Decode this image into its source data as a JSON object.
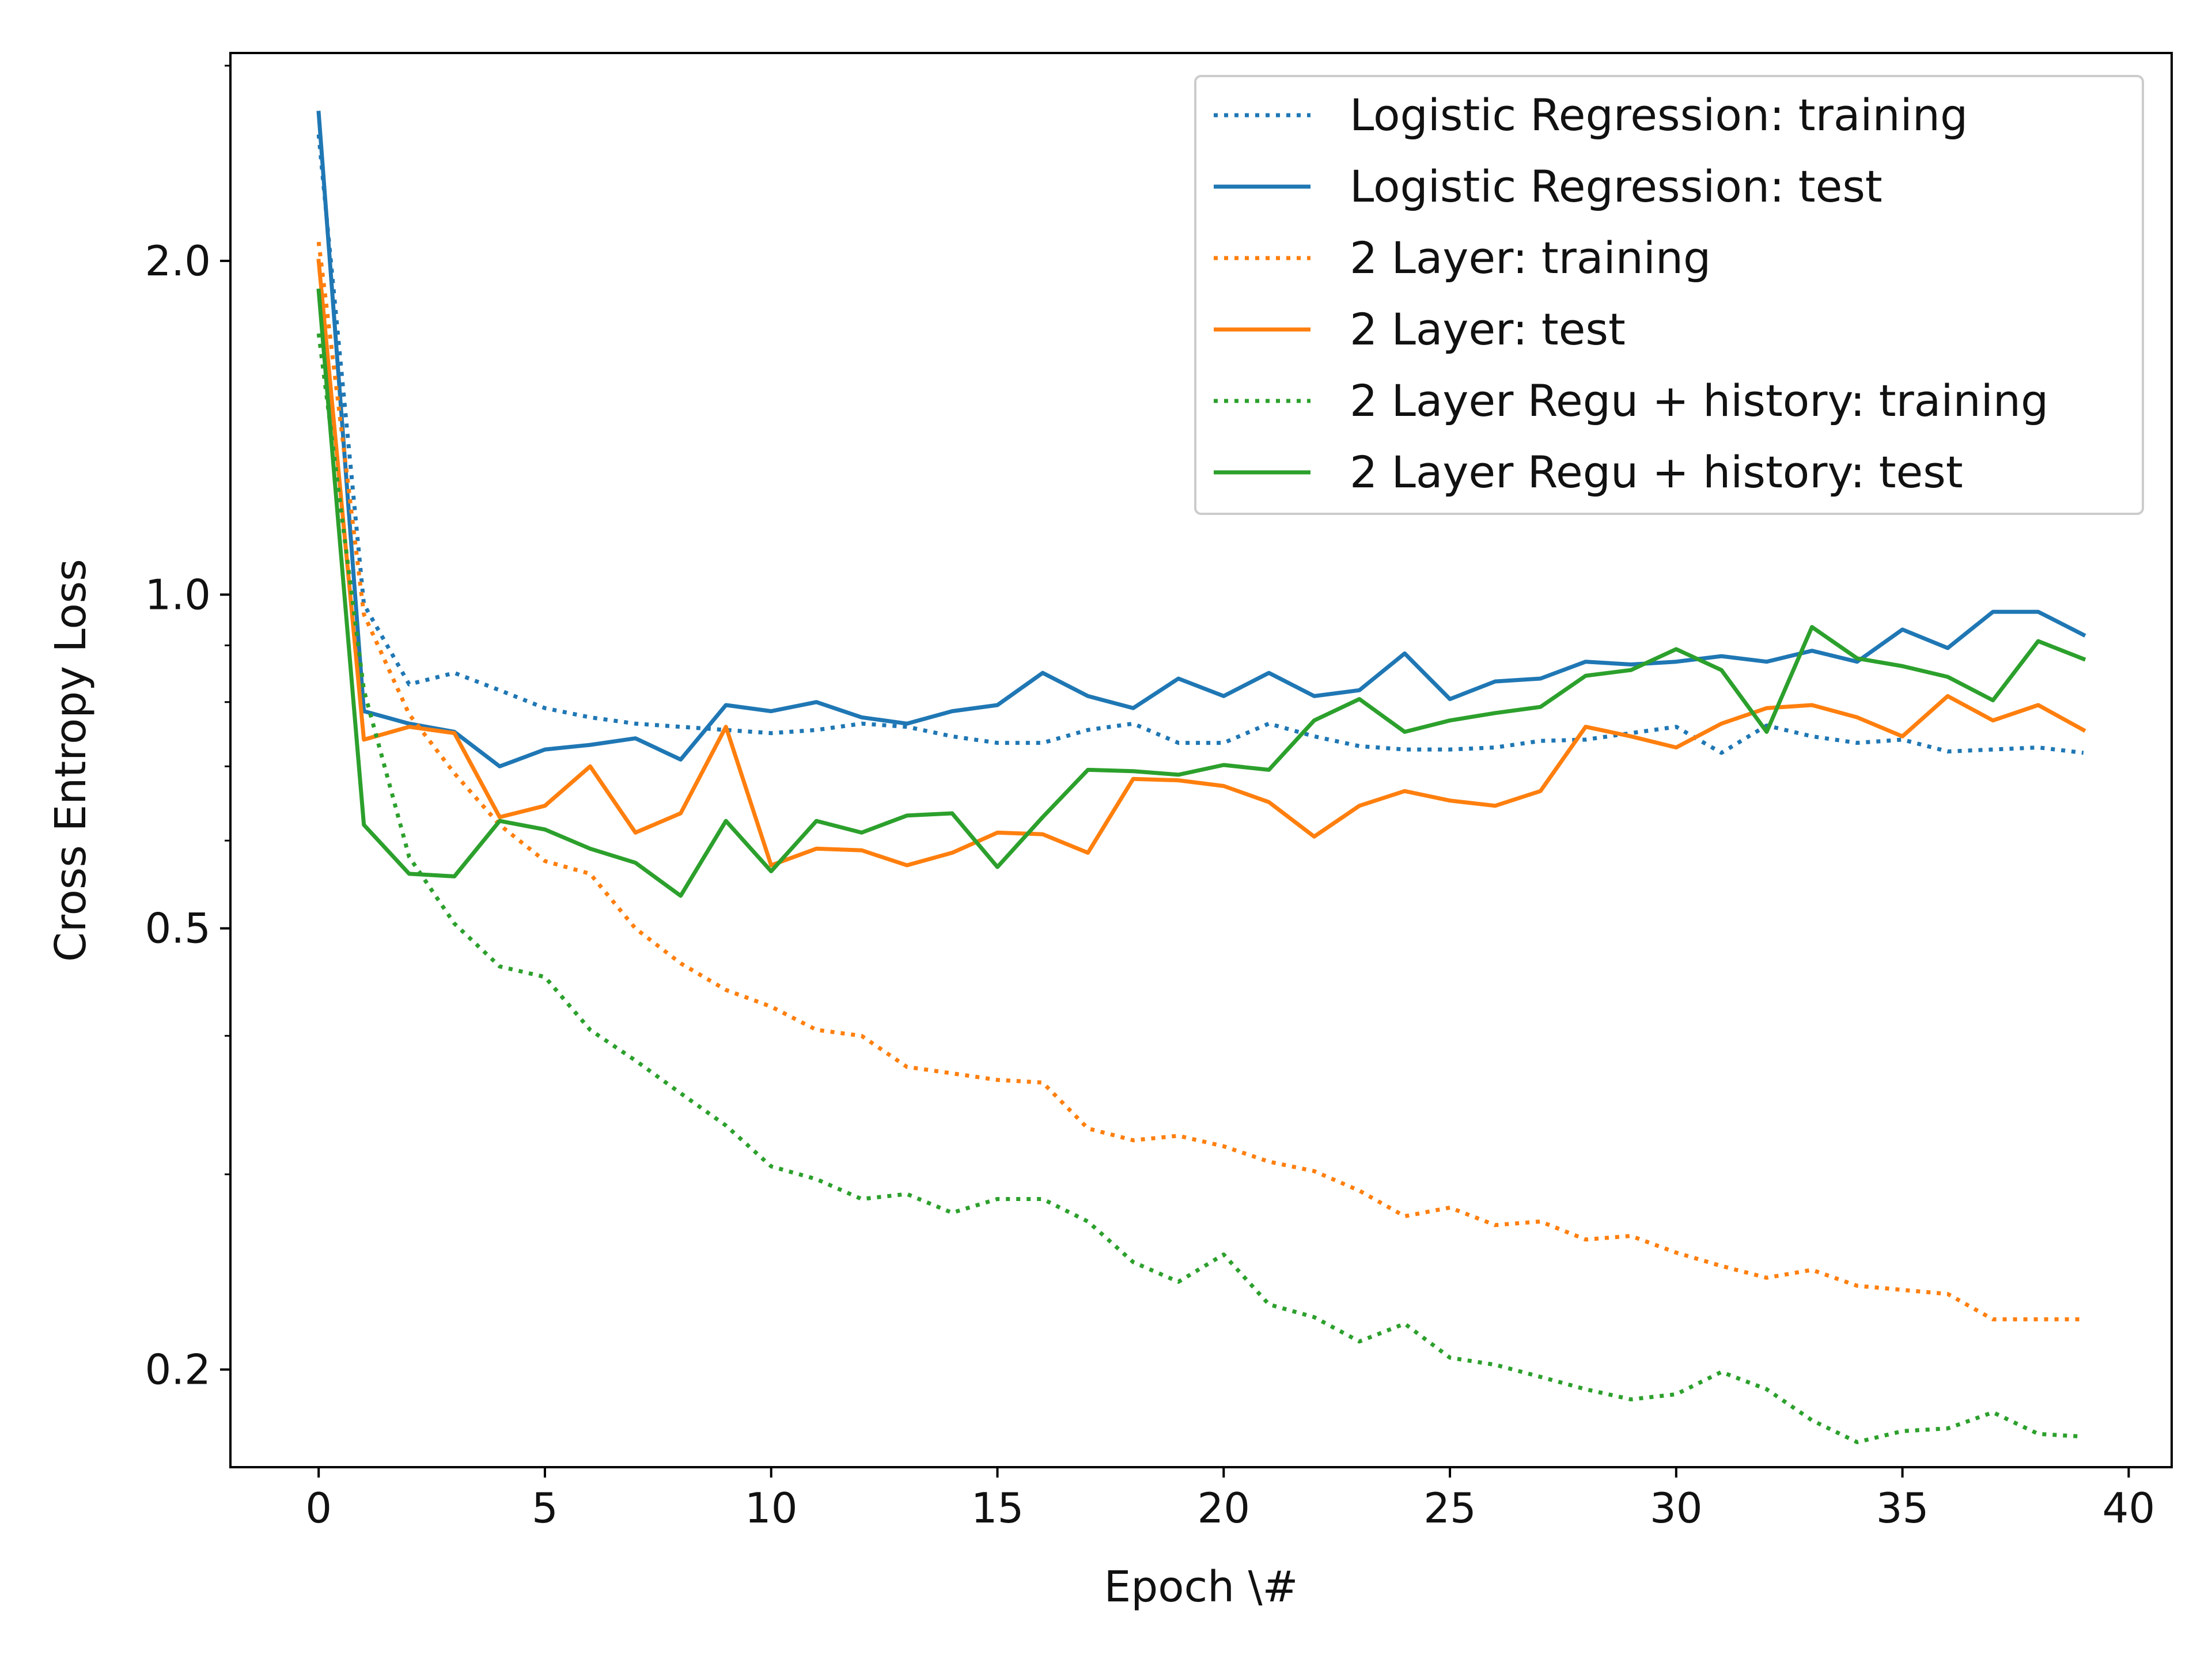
{
  "chart_data": {
    "type": "line",
    "xlabel": "Epoch \\#",
    "ylabel": "Cross Entropy Loss",
    "yscale": "log",
    "xlim": [
      -1.95,
      40.95
    ],
    "ylim": [
      0.1633,
      3.08
    ],
    "xticks": [
      0,
      5,
      10,
      15,
      20,
      25,
      30,
      35,
      40
    ],
    "xtick_labels": [
      "0",
      "5",
      "10",
      "15",
      "20",
      "25",
      "30",
      "35",
      "40"
    ],
    "yticks": [
      0.2,
      0.5,
      1.0,
      2.0
    ],
    "ytick_labels": [
      "0.2",
      "0.5",
      "1.0",
      "2.0"
    ],
    "y_minor_ticks": [
      0.3,
      0.4,
      0.6,
      0.7,
      0.8,
      0.9,
      3.0
    ],
    "grid": false,
    "legend_position": "top-right",
    "x": [
      0,
      1,
      2,
      3,
      4,
      5,
      6,
      7,
      8,
      9,
      10,
      11,
      12,
      13,
      14,
      15,
      16,
      17,
      18,
      19,
      20,
      21,
      22,
      23,
      24,
      25,
      26,
      27,
      28,
      29,
      30,
      31,
      32,
      33,
      34,
      35,
      36,
      37,
      38,
      39
    ],
    "series": [
      {
        "name": "Logistic Regression: training",
        "color": "#1f77b4",
        "style": "dotted",
        "values": [
          2.6,
          0.98,
          0.83,
          0.85,
          0.82,
          0.79,
          0.775,
          0.765,
          0.76,
          0.755,
          0.75,
          0.755,
          0.765,
          0.76,
          0.745,
          0.735,
          0.735,
          0.755,
          0.765,
          0.735,
          0.735,
          0.765,
          0.745,
          0.73,
          0.725,
          0.725,
          0.728,
          0.738,
          0.74,
          0.75,
          0.76,
          0.72,
          0.762,
          0.745,
          0.735,
          0.74,
          0.722,
          0.725,
          0.728,
          0.72
        ]
      },
      {
        "name": "Logistic Regression: test",
        "color": "#1f77b4",
        "style": "solid",
        "values": [
          2.72,
          0.785,
          0.765,
          0.752,
          0.7,
          0.725,
          0.732,
          0.742,
          0.71,
          0.795,
          0.785,
          0.8,
          0.775,
          0.765,
          0.785,
          0.795,
          0.85,
          0.81,
          0.79,
          0.84,
          0.81,
          0.85,
          0.81,
          0.82,
          0.885,
          0.805,
          0.835,
          0.84,
          0.87,
          0.865,
          0.87,
          0.88,
          0.87,
          0.89,
          0.87,
          0.93,
          0.895,
          0.965,
          0.965,
          0.92
        ]
      },
      {
        "name": "2 Layer: training",
        "color": "#ff7f0e",
        "style": "dotted",
        "values": [
          2.08,
          0.96,
          0.78,
          0.69,
          0.62,
          0.575,
          0.56,
          0.5,
          0.465,
          0.44,
          0.425,
          0.405,
          0.4,
          0.375,
          0.37,
          0.365,
          0.363,
          0.33,
          0.322,
          0.325,
          0.318,
          0.308,
          0.302,
          0.29,
          0.275,
          0.28,
          0.27,
          0.272,
          0.262,
          0.264,
          0.255,
          0.248,
          0.242,
          0.246,
          0.238,
          0.236,
          0.234,
          0.222,
          0.222,
          0.222
        ]
      },
      {
        "name": "2 Layer: test",
        "color": "#ff7f0e",
        "style": "solid",
        "values": [
          2.0,
          0.74,
          0.76,
          0.75,
          0.63,
          0.645,
          0.7,
          0.61,
          0.635,
          0.76,
          0.57,
          0.59,
          0.588,
          0.57,
          0.585,
          0.61,
          0.608,
          0.585,
          0.682,
          0.68,
          0.672,
          0.65,
          0.605,
          0.645,
          0.665,
          0.652,
          0.645,
          0.665,
          0.76,
          0.745,
          0.728,
          0.765,
          0.79,
          0.795,
          0.775,
          0.745,
          0.81,
          0.77,
          0.795,
          0.755
        ]
      },
      {
        "name": "2 Layer Regu + history: training",
        "color": "#2ca02c",
        "style": "dotted",
        "values": [
          1.72,
          0.82,
          0.58,
          0.505,
          0.462,
          0.452,
          0.405,
          0.38,
          0.355,
          0.332,
          0.305,
          0.297,
          0.285,
          0.288,
          0.277,
          0.285,
          0.285,
          0.272,
          0.25,
          0.24,
          0.254,
          0.229,
          0.223,
          0.212,
          0.22,
          0.205,
          0.202,
          0.197,
          0.192,
          0.188,
          0.19,
          0.199,
          0.192,
          0.18,
          0.172,
          0.176,
          0.177,
          0.183,
          0.175,
          0.174
        ]
      },
      {
        "name": "2 Layer Regu + history: test",
        "color": "#2ca02c",
        "style": "solid",
        "values": [
          1.88,
          0.62,
          0.56,
          0.557,
          0.625,
          0.614,
          0.59,
          0.573,
          0.535,
          0.625,
          0.563,
          0.625,
          0.61,
          0.632,
          0.635,
          0.568,
          0.63,
          0.695,
          0.693,
          0.688,
          0.702,
          0.695,
          0.77,
          0.805,
          0.752,
          0.77,
          0.782,
          0.792,
          0.845,
          0.855,
          0.893,
          0.855,
          0.752,
          0.935,
          0.876,
          0.862,
          0.843,
          0.803,
          0.908,
          0.875
        ]
      }
    ]
  }
}
